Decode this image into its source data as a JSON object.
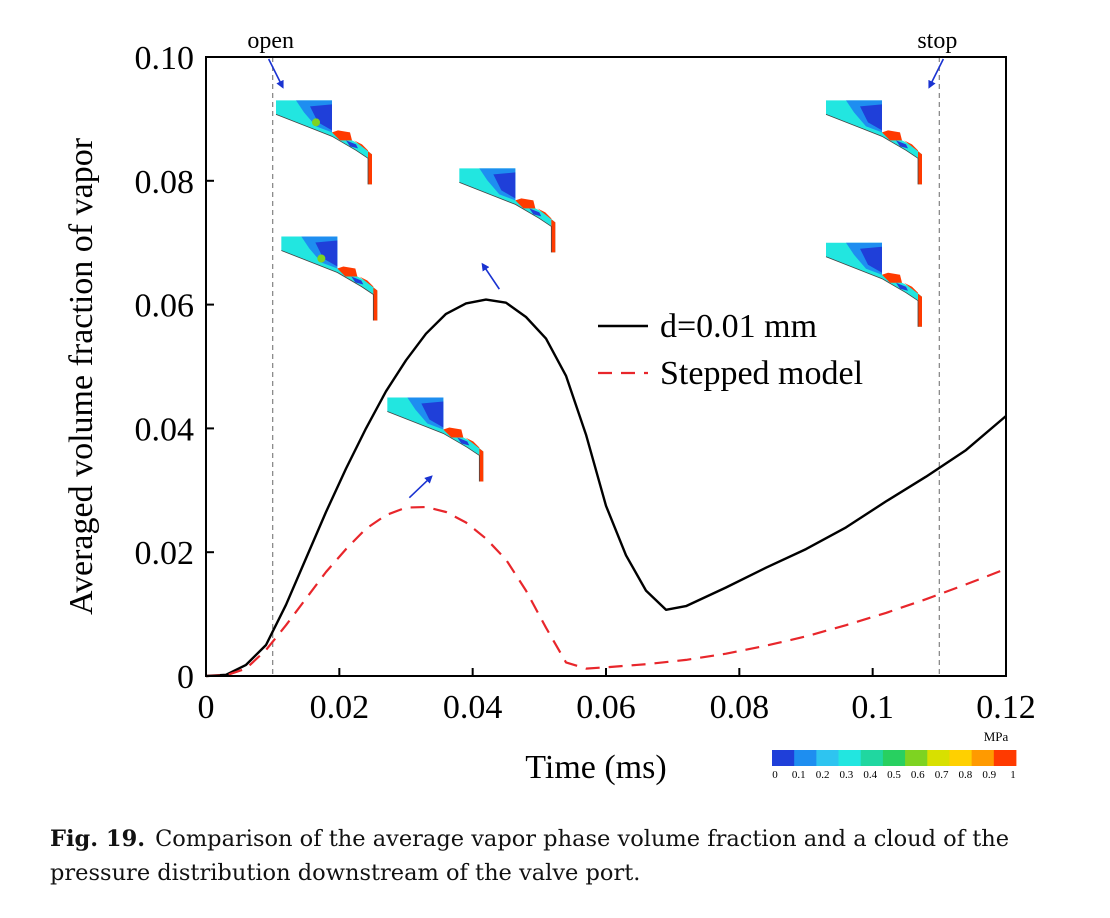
{
  "chart_data": {
    "type": "line",
    "title": "",
    "xlabel": "Time (ms)",
    "ylabel": "Averaged volume fraction of vapor",
    "xlim": [
      0,
      0.12
    ],
    "ylim": [
      0,
      0.1
    ],
    "x_ticks": [
      0,
      0.02,
      0.04,
      0.06,
      0.08,
      0.1,
      0.12
    ],
    "x_tick_labels": [
      "0",
      "0.02",
      "0.04",
      "0.06",
      "0.08",
      "0.1",
      "0.12"
    ],
    "y_ticks": [
      0,
      0.02,
      0.04,
      0.06,
      0.08,
      0.1
    ],
    "y_tick_labels": [
      "0",
      "0.02",
      "0.04",
      "0.06",
      "0.08",
      "0.10"
    ],
    "grid": false,
    "legend_position": "center-right",
    "series": [
      {
        "name": "d=0.01 mm",
        "color": "#000000",
        "dash": "solid",
        "x": [
          0,
          0.003,
          0.006,
          0.009,
          0.012,
          0.015,
          0.018,
          0.021,
          0.024,
          0.027,
          0.03,
          0.033,
          0.036,
          0.039,
          0.042,
          0.045,
          0.048,
          0.051,
          0.054,
          0.057,
          0.06,
          0.063,
          0.066,
          0.069,
          0.072,
          0.078,
          0.084,
          0.09,
          0.096,
          0.102,
          0.108,
          0.114,
          0.12
        ],
        "y": [
          0,
          0.0002,
          0.0018,
          0.005,
          0.0115,
          0.019,
          0.0265,
          0.0335,
          0.04,
          0.046,
          0.051,
          0.0553,
          0.0585,
          0.0602,
          0.0608,
          0.0603,
          0.058,
          0.0545,
          0.0485,
          0.039,
          0.0275,
          0.0195,
          0.0138,
          0.0107,
          0.0113,
          0.0143,
          0.0175,
          0.0205,
          0.024,
          0.0282,
          0.0322,
          0.0365,
          0.042
        ]
      },
      {
        "name": "Stepped model",
        "color": "#e8262b",
        "dash": "dashed",
        "x": [
          0,
          0.003,
          0.006,
          0.009,
          0.012,
          0.015,
          0.018,
          0.021,
          0.024,
          0.027,
          0.03,
          0.033,
          0.036,
          0.039,
          0.042,
          0.045,
          0.048,
          0.051,
          0.054,
          0.057,
          0.06,
          0.066,
          0.072,
          0.078,
          0.084,
          0.09,
          0.096,
          0.102,
          0.108,
          0.114,
          0.12
        ],
        "y": [
          0,
          0.0001,
          0.0012,
          0.0042,
          0.0082,
          0.0125,
          0.0168,
          0.0205,
          0.0238,
          0.026,
          0.0272,
          0.0273,
          0.0265,
          0.0248,
          0.0222,
          0.0188,
          0.0138,
          0.0078,
          0.0022,
          0.0012,
          0.0014,
          0.0019,
          0.0026,
          0.0036,
          0.0049,
          0.0064,
          0.0082,
          0.0102,
          0.0124,
          0.0148,
          0.0173
        ]
      }
    ],
    "annotations": [
      {
        "text": "open",
        "x": 0.01
      },
      {
        "text": "stop",
        "x": 0.11
      }
    ],
    "colorbar": {
      "unit": "MPa",
      "tick_labels": [
        "0",
        "0.1",
        "0.2",
        "0.3",
        "0.4",
        "0.5",
        "0.6",
        "0.7",
        "0.8",
        "0.9",
        "1"
      ],
      "colors": [
        "#1f3fd9",
        "#1e8ef0",
        "#2ec4f0",
        "#22e6e0",
        "#20d7a0",
        "#28d060",
        "#7ed321",
        "#d8e000",
        "#ffd000",
        "#ff9a00",
        "#ff3a00"
      ]
    },
    "insets": [
      {
        "name": "pressure-cloud-open-top",
        "x": 0.0105,
        "y": 0.093
      },
      {
        "name": "pressure-cloud-open-bottom",
        "x": 0.0113,
        "y": 0.071
      },
      {
        "name": "pressure-cloud-peak-solid",
        "x": 0.038,
        "y": 0.082
      },
      {
        "name": "pressure-cloud-peak-dashed",
        "x": 0.0272,
        "y": 0.045
      },
      {
        "name": "pressure-cloud-stop-top",
        "x": 0.093,
        "y": 0.093
      },
      {
        "name": "pressure-cloud-stop-bottom",
        "x": 0.093,
        "y": 0.07
      }
    ]
  },
  "caption": {
    "label": "Fig. 19.",
    "text": "Comparison of the average vapor phase volume fraction and a cloud of the pressure distribution downstream of the valve port."
  }
}
